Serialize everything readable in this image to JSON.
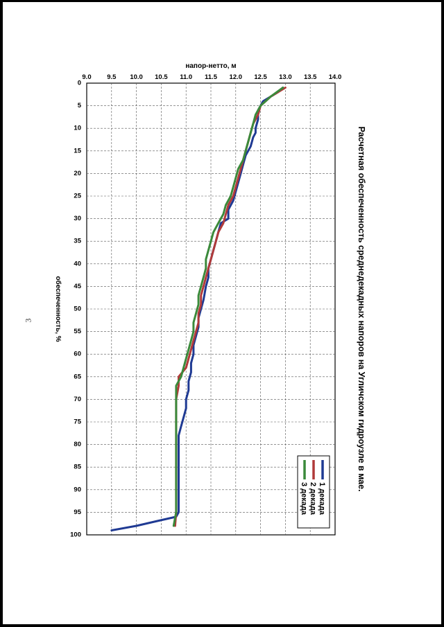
{
  "page": {
    "number": "3"
  },
  "chart_data": {
    "type": "line",
    "title": "Расчетная обеспеченность среднедекадных напоров на Угличском гидроузле в мае.",
    "xlabel": "обеспеченность, %",
    "ylabel": "напор-нетто, м",
    "xlim": [
      0,
      100
    ],
    "ylim": [
      9.0,
      14.0
    ],
    "y_reversed": true,
    "rotated": "90deg-clockwise",
    "grid": true,
    "legend_position": "top-right",
    "x_ticks": [
      "0",
      "5",
      "10",
      "15",
      "20",
      "25",
      "30",
      "35",
      "40",
      "45",
      "50",
      "55",
      "60",
      "65",
      "70",
      "75",
      "80",
      "85",
      "90",
      "95",
      "100"
    ],
    "y_ticks": [
      "9.0",
      "9.5",
      "10.0",
      "10.5",
      "11.0",
      "11.5",
      "12.0",
      "12.5",
      "13.0",
      "13.5",
      "14.0"
    ],
    "series": [
      {
        "name": "1 декада",
        "color": "#1f3a93",
        "x": [
          1,
          2,
          4,
          5,
          6,
          8,
          10,
          11,
          12,
          14,
          16,
          18,
          20,
          22,
          24,
          26,
          28,
          30,
          31,
          33,
          35,
          37,
          39,
          41,
          43,
          45,
          48,
          50,
          52,
          54,
          56,
          58,
          60,
          62,
          64,
          66,
          68,
          70,
          72,
          74,
          76,
          78,
          80,
          82,
          84,
          86,
          88,
          90,
          92,
          94,
          95,
          96,
          97,
          98,
          99
        ],
        "y": [
          12.95,
          12.85,
          12.55,
          12.5,
          12.45,
          12.45,
          12.4,
          12.4,
          12.35,
          12.3,
          12.2,
          12.15,
          12.1,
          12.05,
          12.0,
          11.95,
          11.85,
          11.85,
          11.7,
          11.65,
          11.6,
          11.55,
          11.5,
          11.45,
          11.45,
          11.4,
          11.35,
          11.3,
          11.25,
          11.25,
          11.2,
          11.15,
          11.15,
          11.1,
          11.1,
          11.05,
          11.05,
          11.0,
          11.0,
          10.95,
          10.9,
          10.85,
          10.85,
          10.85,
          10.85,
          10.85,
          10.85,
          10.85,
          10.85,
          10.85,
          10.85,
          10.8,
          10.4,
          10.0,
          9.5
        ]
      },
      {
        "name": "2 декада",
        "color": "#b03a3a",
        "x": [
          1,
          3,
          5,
          7,
          9,
          11,
          13,
          15,
          17,
          19,
          21,
          23,
          25,
          27,
          29,
          31,
          33,
          35,
          37,
          39,
          41,
          43,
          45,
          47,
          49,
          51,
          53,
          55,
          57,
          59,
          61,
          63,
          65,
          67,
          70,
          75,
          80,
          85,
          90,
          95,
          98
        ],
        "y": [
          13.0,
          12.7,
          12.5,
          12.45,
          12.35,
          12.3,
          12.25,
          12.2,
          12.15,
          12.1,
          12.05,
          12.0,
          11.95,
          11.85,
          11.8,
          11.75,
          11.65,
          11.6,
          11.55,
          11.5,
          11.45,
          11.4,
          11.35,
          11.3,
          11.3,
          11.25,
          11.25,
          11.2,
          11.15,
          11.1,
          11.05,
          11.0,
          10.85,
          10.85,
          10.8,
          10.8,
          10.8,
          10.8,
          10.8,
          10.8,
          10.78
        ]
      },
      {
        "name": "3 декада",
        "color": "#3b8a3b",
        "x": [
          1,
          3,
          5,
          7,
          9,
          11,
          13,
          15,
          17,
          19,
          21,
          23,
          25,
          27,
          29,
          31,
          33,
          35,
          37,
          39,
          41,
          43,
          45,
          47,
          49,
          51,
          53,
          55,
          57,
          59,
          61,
          63,
          65,
          67,
          70,
          75,
          80,
          85,
          90,
          95,
          98
        ],
        "y": [
          12.95,
          12.7,
          12.5,
          12.4,
          12.35,
          12.3,
          12.25,
          12.2,
          12.15,
          12.05,
          12.0,
          11.95,
          11.9,
          11.8,
          11.75,
          11.65,
          11.55,
          11.5,
          11.45,
          11.4,
          11.4,
          11.35,
          11.3,
          11.25,
          11.25,
          11.2,
          11.15,
          11.15,
          11.1,
          11.05,
          11.0,
          10.95,
          10.9,
          10.8,
          10.8,
          10.8,
          10.8,
          10.8,
          10.8,
          10.8,
          10.75
        ]
      }
    ]
  }
}
